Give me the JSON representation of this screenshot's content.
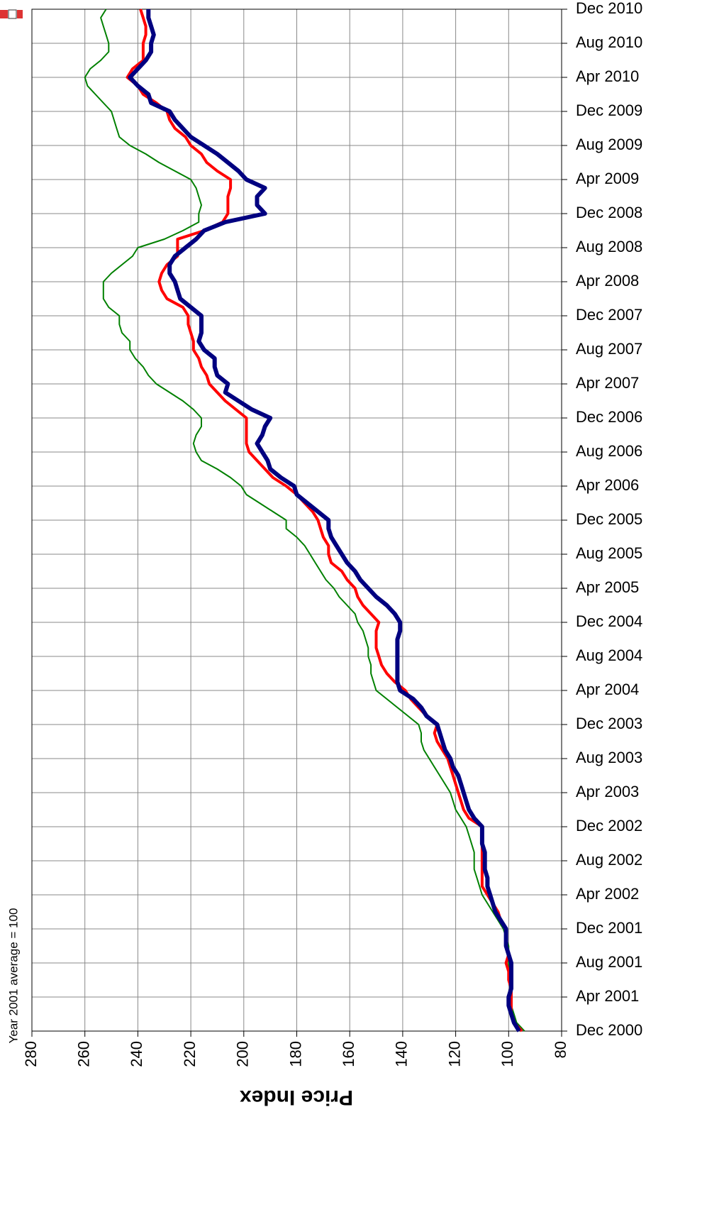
{
  "chart_data": {
    "type": "line",
    "orientation": "horizontal",
    "x_label": "Price Index",
    "note": "Year 2001 average = 100",
    "categories": [
      "Dec 2000",
      null,
      null,
      null,
      "Apr 2001",
      null,
      null,
      null,
      "Aug 2001",
      null,
      null,
      null,
      "Dec 2001",
      null,
      null,
      null,
      "Apr 2002",
      null,
      null,
      null,
      "Aug 2002",
      null,
      null,
      null,
      "Dec 2002",
      null,
      null,
      null,
      "Apr 2003",
      null,
      null,
      null,
      "Aug 2003",
      null,
      null,
      null,
      "Dec 2003",
      null,
      null,
      null,
      "Apr 2004",
      null,
      null,
      null,
      "Aug 2004",
      null,
      null,
      null,
      "Dec 2004",
      null,
      null,
      null,
      "Apr 2005",
      null,
      null,
      null,
      "Aug 2005",
      null,
      null,
      null,
      "Dec 2005",
      null,
      null,
      null,
      "Apr 2006",
      null,
      null,
      null,
      "Aug 2006",
      null,
      null,
      null,
      "Dec 2006",
      null,
      null,
      null,
      "Apr 2007",
      null,
      null,
      null,
      "Aug 2007",
      null,
      null,
      null,
      "Dec 2007",
      null,
      null,
      null,
      "Apr 2008",
      null,
      null,
      null,
      "Aug 2008",
      null,
      null,
      null,
      "Dec 2008",
      null,
      null,
      null,
      "Apr 2009",
      null,
      null,
      null,
      "Aug 2009",
      null,
      null,
      null,
      "Dec 2009",
      null,
      null,
      null,
      "Apr 2010",
      null,
      null,
      null,
      "Aug 2010",
      null,
      null,
      null,
      "Dec 2010"
    ],
    "series": [
      {
        "color": "#000080",
        "width": 6,
        "values": [
          96,
          98,
          99,
          100,
          100,
          99,
          99,
          99,
          99,
          100,
          101,
          101,
          101,
          103,
          105,
          106,
          107,
          108,
          108,
          109,
          109,
          109,
          110,
          110,
          110,
          113,
          115,
          116,
          117,
          118,
          119,
          121,
          122,
          124,
          125,
          126,
          127,
          131,
          133,
          136,
          141,
          142,
          142,
          142,
          142,
          142,
          142,
          141,
          141,
          143,
          146,
          150,
          153,
          156,
          158,
          161,
          163,
          165,
          167,
          168,
          168,
          172,
          176,
          180,
          181,
          186,
          190,
          191,
          193,
          195,
          193,
          192,
          190,
          197,
          202,
          207,
          206,
          210,
          211,
          211,
          215,
          217,
          216,
          216,
          216,
          220,
          224,
          225,
          226,
          228,
          228,
          226,
          222,
          218,
          215,
          207,
          192,
          195,
          195,
          192,
          199,
          202,
          206,
          210,
          215,
          220,
          223,
          226,
          228,
          235,
          236,
          240,
          243,
          240,
          237,
          235,
          235,
          234,
          235,
          236,
          236
        ]
      },
      {
        "color": "#ff0000",
        "width": 4,
        "values": [
          95,
          98,
          99,
          99,
          99,
          99,
          100,
          100,
          101,
          100,
          101,
          101,
          101,
          103,
          104,
          106,
          108,
          110,
          110,
          110,
          110,
          110,
          110,
          110,
          110,
          115,
          117,
          118,
          119,
          120,
          121,
          122,
          123,
          125,
          127,
          128,
          127,
          131,
          134,
          137,
          139,
          143,
          146,
          148,
          149,
          150,
          150,
          150,
          149,
          152,
          155,
          157,
          158,
          161,
          163,
          167,
          168,
          168,
          170,
          171,
          172,
          174,
          177,
          180,
          184,
          189,
          192,
          195,
          198,
          199,
          199,
          199,
          199,
          203,
          207,
          210,
          213,
          214,
          216,
          217,
          219,
          219,
          220,
          221,
          221,
          223,
          229,
          231,
          232,
          231,
          229,
          225,
          225,
          225,
          215,
          208,
          206,
          206,
          206,
          205,
          205,
          210,
          214,
          216,
          220,
          222,
          226,
          228,
          229,
          233,
          238,
          240,
          244,
          242,
          238,
          238,
          238,
          237,
          237,
          238,
          239
        ]
      },
      {
        "color": "#008000",
        "width": 2,
        "values": [
          94,
          97,
          98,
          99,
          99,
          99,
          99,
          100,
          100,
          100,
          100,
          101,
          102,
          104,
          106,
          108,
          110,
          111,
          112,
          113,
          113,
          113,
          114,
          115,
          116,
          118,
          120,
          121,
          122,
          124,
          126,
          128,
          130,
          132,
          133,
          133,
          134,
          138,
          142,
          146,
          150,
          151,
          152,
          152,
          153,
          153,
          154,
          155,
          157,
          158,
          161,
          164,
          166,
          169,
          171,
          173,
          175,
          177,
          180,
          184,
          184,
          189,
          194,
          199,
          201,
          205,
          210,
          216,
          218,
          219,
          218,
          216,
          216,
          219,
          223,
          228,
          233,
          236,
          238,
          241,
          243,
          243,
          246,
          247,
          247,
          251,
          253,
          253,
          253,
          250,
          246,
          242,
          240,
          230,
          223,
          217,
          217,
          216,
          217,
          218,
          220,
          226,
          232,
          237,
          243,
          247,
          248,
          249,
          250,
          253,
          256,
          259,
          260,
          258,
          254,
          251,
          251,
          252,
          253,
          254,
          252
        ]
      }
    ],
    "xlim": [
      280,
      80
    ],
    "xticks": [
      280,
      260,
      240,
      220,
      200,
      180,
      160,
      140,
      120,
      100,
      80
    ],
    "grid": true
  }
}
